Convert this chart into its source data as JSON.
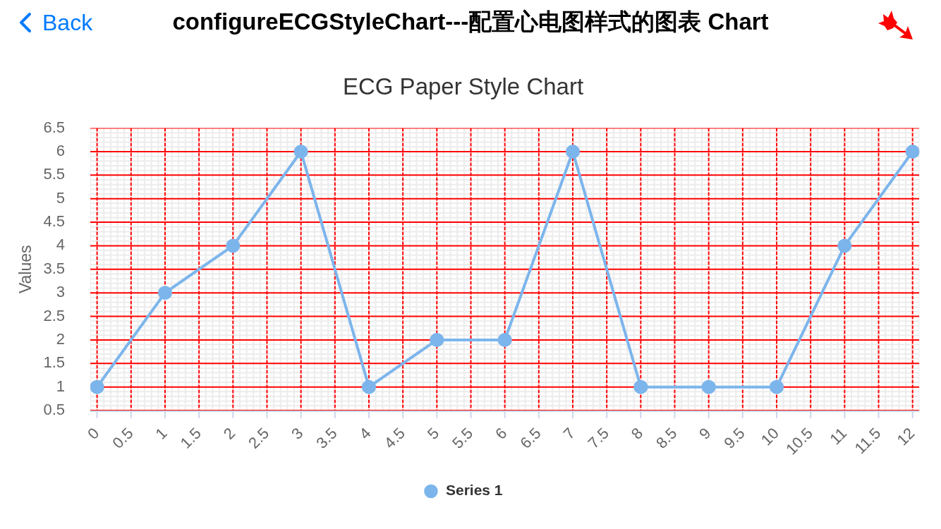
{
  "chart_data": {
    "type": "line",
    "title": "ECG Paper Style Chart",
    "ylabel": "Values",
    "annotations": [
      "Back",
      "configureECGStyleChart---配置心电图样式的图表 Chart"
    ],
    "x": [
      0,
      1,
      2,
      3,
      4,
      5,
      6,
      7,
      8,
      9,
      10,
      11,
      12
    ],
    "series": [
      {
        "name": "Series 1",
        "color": "#7cb5ec",
        "values": [
          1,
          3,
          4,
          6,
          1,
          2,
          2,
          6,
          1,
          1,
          1,
          4,
          6
        ]
      }
    ],
    "xlim": [
      -0.1,
      12.1
    ],
    "xticks": [
      {
        "value": -0.1,
        "label": null
      },
      0,
      {
        "value": 0.1,
        "label": null
      },
      {
        "value": 0.2,
        "label": null
      },
      {
        "value": 0.3,
        "label": null
      },
      {
        "value": 0.4,
        "label": null
      },
      0.5,
      {
        "value": 0.6,
        "label": null
      },
      {
        "value": 0.7,
        "label": null
      },
      {
        "value": 0.8,
        "label": null
      },
      {
        "value": 0.9,
        "label": null
      },
      1,
      {
        "value": 1.1,
        "label": null
      },
      {
        "value": 1.2,
        "label": null
      },
      {
        "value": 1.3,
        "label": null
      },
      {
        "value": 1.4,
        "label": null
      },
      1.5,
      {
        "value": 1.6,
        "label": null
      },
      {
        "value": 1.7,
        "label": null
      },
      {
        "value": 1.8,
        "label": null
      },
      {
        "value": 1.9,
        "label": null
      },
      2,
      {
        "value": 2.1,
        "label": null
      },
      {
        "value": 2.2,
        "label": null
      },
      {
        "value": 2.3,
        "label": null
      },
      {
        "value": 2.4,
        "label": null
      },
      2.5,
      {
        "value": 2.6,
        "label": null
      },
      {
        "value": 2.7,
        "label": null
      },
      {
        "value": 2.8,
        "label": null
      },
      {
        "value": 2.9,
        "label": null
      },
      3,
      {
        "value": 3.1,
        "label": null
      },
      {
        "value": 3.2,
        "label": null
      },
      {
        "value": 3.3,
        "label": null
      },
      {
        "value": 3.4,
        "label": null
      },
      3.5,
      {
        "value": 3.6,
        "label": null
      },
      {
        "value": 3.7,
        "label": null
      },
      {
        "value": 3.8,
        "label": null
      },
      {
        "value": 3.9,
        "label": null
      },
      4,
      {
        "value": 4.1,
        "label": null
      },
      {
        "value": 4.2,
        "label": null
      },
      {
        "value": 4.3,
        "label": null
      },
      {
        "value": 4.4,
        "label": null
      },
      4.5,
      {
        "value": 4.6,
        "label": null
      },
      {
        "value": 4.7,
        "label": null
      },
      {
        "value": 4.8,
        "label": null
      },
      {
        "value": 4.9,
        "label": null
      },
      5,
      {
        "value": 5.1,
        "label": null
      },
      {
        "value": 5.2,
        "label": null
      },
      {
        "value": 5.3,
        "label": null
      },
      {
        "value": 5.4,
        "label": null
      },
      5.5,
      {
        "value": 5.6,
        "label": null
      },
      {
        "value": 5.7,
        "label": null
      },
      {
        "value": 5.8,
        "label": null
      },
      {
        "value": 5.9,
        "label": null
      },
      6,
      {
        "value": 6.1,
        "label": null
      },
      {
        "value": 6.2,
        "label": null
      },
      {
        "value": 6.3,
        "label": null
      },
      {
        "value": 6.4,
        "label": null
      },
      6.5,
      {
        "value": 6.6,
        "label": null
      },
      {
        "value": 6.7,
        "label": null
      },
      {
        "value": 6.8,
        "label": null
      },
      {
        "value": 6.9,
        "label": null
      },
      7,
      {
        "value": 7.1,
        "label": null
      },
      {
        "value": 7.2,
        "label": null
      },
      {
        "value": 7.3,
        "label": null
      },
      {
        "value": 7.4,
        "label": null
      },
      7.5,
      {
        "value": 7.6,
        "label": null
      },
      {
        "value": 7.7,
        "label": null
      },
      {
        "value": 7.8,
        "label": null
      },
      {
        "value": 7.9,
        "label": null
      },
      8,
      {
        "value": 8.1,
        "label": null
      },
      {
        "value": 8.2,
        "label": null
      },
      {
        "value": 8.3,
        "label": null
      },
      {
        "value": 8.4,
        "label": null
      },
      8.5,
      {
        "value": 8.6,
        "label": null
      },
      {
        "value": 8.7,
        "label": null
      },
      {
        "value": 8.8,
        "label": null
      },
      {
        "value": 8.9,
        "label": null
      },
      9,
      {
        "value": 9.1,
        "label": null
      },
      {
        "value": 9.2,
        "label": null
      },
      {
        "value": 9.3,
        "label": null
      },
      {
        "value": 9.4,
        "label": null
      },
      9.5,
      {
        "value": 9.6,
        "label": null
      },
      {
        "value": 9.7,
        "label": null
      },
      {
        "value": 9.8,
        "label": null
      },
      {
        "value": 9.9,
        "label": null
      },
      10,
      {
        "value": 10.1,
        "label": null
      },
      {
        "value": 10.2,
        "label": null
      },
      {
        "value": 10.3,
        "label": null
      },
      {
        "value": 10.4,
        "label": null
      },
      10.5,
      {
        "value": 10.6,
        "label": null
      },
      {
        "value": 10.7,
        "label": null
      },
      {
        "value": 10.8,
        "label": null
      },
      {
        "value": 10.9,
        "label": null
      },
      11,
      {
        "value": 11.1,
        "label": null
      },
      {
        "value": 11.2,
        "label": null
      },
      {
        "value": 11.3,
        "label": null
      },
      {
        "value": 11.4,
        "label": null
      },
      11.5,
      {
        "value": 11.6,
        "label": null
      },
      {
        "value": 11.7,
        "label": null
      },
      {
        "value": 11.8,
        "label": null
      },
      {
        "value": 11.9,
        "label": null
      },
      12,
      {
        "value": 12.1,
        "label": null
      }
    ],
    "ylim": [
      0.5,
      6.5
    ],
    "yticks": [
      0.5,
      {
        "value": 0.6,
        "label": null
      },
      {
        "value": 0.7,
        "label": null
      },
      {
        "value": 0.8,
        "label": null
      },
      {
        "value": 0.9,
        "label": null
      },
      1,
      {
        "value": 1.1,
        "label": null
      },
      {
        "value": 1.2,
        "label": null
      },
      {
        "value": 1.3,
        "label": null
      },
      {
        "value": 1.4,
        "label": null
      },
      1.5,
      {
        "value": 1.6,
        "label": null
      },
      {
        "value": 1.7,
        "label": null
      },
      {
        "value": 1.8,
        "label": null
      },
      {
        "value": 1.9,
        "label": null
      },
      2,
      {
        "value": 2.1,
        "label": null
      },
      {
        "value": 2.2,
        "label": null
      },
      {
        "value": 2.3,
        "label": null
      },
      {
        "value": 2.4,
        "label": null
      },
      2.5,
      {
        "value": 2.6,
        "label": null
      },
      {
        "value": 2.7,
        "label": null
      },
      {
        "value": 2.8,
        "label": null
      },
      {
        "value": 2.9,
        "label": null
      },
      3,
      {
        "value": 3.1,
        "label": null
      },
      {
        "value": 3.2,
        "label": null
      },
      {
        "value": 3.3,
        "label": null
      },
      {
        "value": 3.4,
        "label": null
      },
      3.5,
      {
        "value": 3.6,
        "label": null
      },
      {
        "value": 3.7,
        "label": null
      },
      {
        "value": 3.8,
        "label": null
      },
      {
        "value": 3.9,
        "label": null
      },
      4,
      {
        "value": 4.1,
        "label": null
      },
      {
        "value": 4.2,
        "label": null
      },
      {
        "value": 4.3,
        "label": null
      },
      {
        "value": 4.4,
        "label": null
      },
      4.5,
      {
        "value": 4.6,
        "label": null
      },
      {
        "value": 4.7,
        "label": null
      },
      {
        "value": 4.8,
        "label": null
      },
      {
        "value": 4.9,
        "label": null
      },
      5,
      {
        "value": 5.1,
        "label": null
      },
      {
        "value": 5.2,
        "label": null
      },
      {
        "value": 5.3,
        "label": null
      },
      {
        "value": 5.4,
        "label": null
      },
      5.5,
      {
        "value": 5.6,
        "label": null
      },
      {
        "value": 5.7,
        "label": null
      },
      {
        "value": 5.8,
        "label": null
      },
      {
        "value": 5.9,
        "label": null
      },
      6,
      {
        "value": 6.1,
        "label": null
      },
      {
        "value": 6.2,
        "label": null
      },
      {
        "value": 6.3,
        "label": null
      },
      {
        "value": 6.4,
        "label": null
      },
      6.5
    ],
    "grid": true,
    "legend": "bottom",
    "marker": "circle",
    "line_style": "solid"
  }
}
